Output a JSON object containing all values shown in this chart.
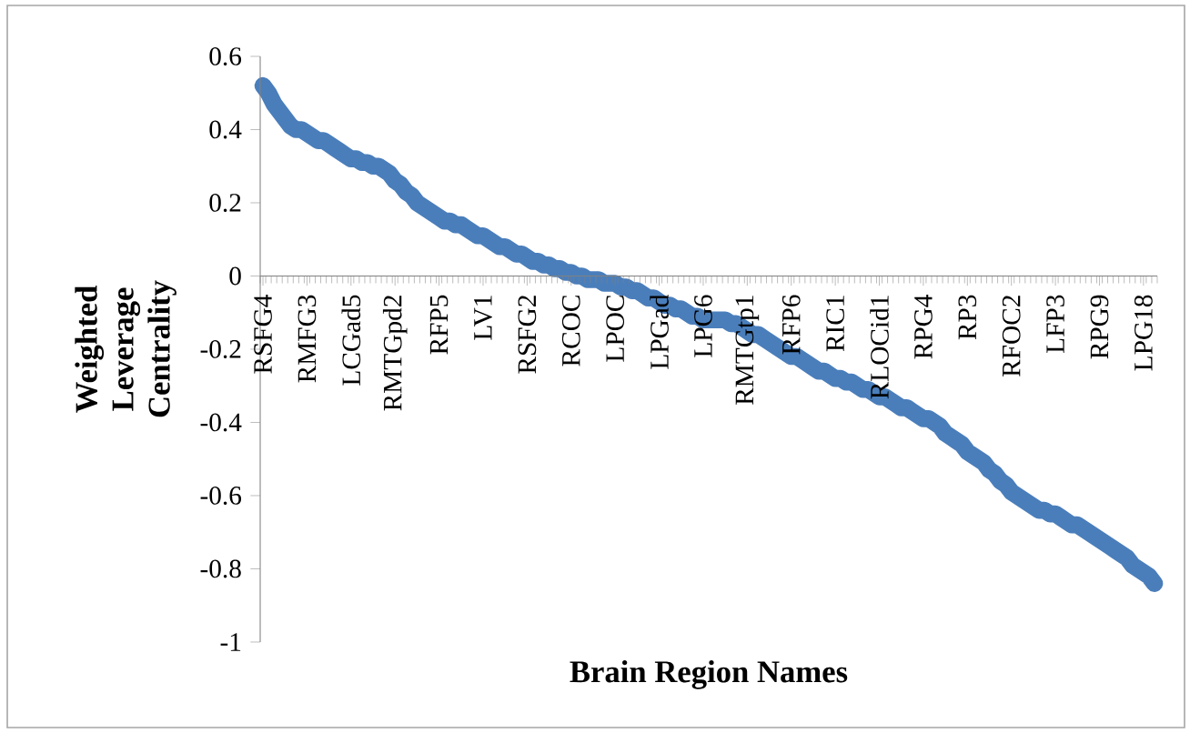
{
  "chart_data": {
    "type": "line",
    "xlabel": "Brain Region Names",
    "ylabel": "Weighted Leverage Centrality",
    "categories": [
      "RSFG4",
      null,
      null,
      null,
      null,
      null,
      null,
      null,
      "RMFG3",
      null,
      null,
      null,
      null,
      null,
      null,
      null,
      "LCGad5",
      null,
      null,
      null,
      null,
      null,
      null,
      null,
      "RMTGpd2",
      null,
      null,
      null,
      null,
      null,
      null,
      null,
      "RFP5",
      null,
      null,
      null,
      null,
      null,
      null,
      null,
      "LV1",
      null,
      null,
      null,
      null,
      null,
      null,
      null,
      "RSFG2",
      null,
      null,
      null,
      null,
      null,
      null,
      null,
      "RCOC",
      null,
      null,
      null,
      null,
      null,
      null,
      null,
      "LPOC",
      null,
      null,
      null,
      null,
      null,
      null,
      null,
      "LPGad",
      null,
      null,
      null,
      null,
      null,
      null,
      null,
      "LPG6",
      null,
      null,
      null,
      null,
      null,
      null,
      null,
      "RMTGtp1",
      null,
      null,
      null,
      null,
      null,
      null,
      null,
      "RFP6",
      null,
      null,
      null,
      null,
      null,
      null,
      null,
      "RIC1",
      null,
      null,
      null,
      null,
      null,
      null,
      null,
      "RLOCid1",
      null,
      null,
      null,
      null,
      null,
      null,
      null,
      "RPG4",
      null,
      null,
      null,
      null,
      null,
      null,
      null,
      "RP3",
      null,
      null,
      null,
      null,
      null,
      null,
      null,
      "RFOC2",
      null,
      null,
      null,
      null,
      null,
      null,
      null,
      "LFP3",
      null,
      null,
      null,
      null,
      null,
      null,
      null,
      "RPG9",
      null,
      null,
      null,
      null,
      null,
      null,
      null,
      "LPG18",
      null,
      null
    ],
    "values": [
      0.52,
      0.5,
      0.47,
      0.45,
      0.43,
      0.41,
      0.4,
      0.4,
      0.39,
      0.38,
      0.37,
      0.37,
      0.36,
      0.35,
      0.34,
      0.33,
      0.32,
      0.32,
      0.31,
      0.31,
      0.3,
      0.3,
      0.29,
      0.28,
      0.26,
      0.25,
      0.23,
      0.22,
      0.2,
      0.19,
      0.18,
      0.17,
      0.16,
      0.15,
      0.15,
      0.14,
      0.14,
      0.13,
      0.12,
      0.11,
      0.11,
      0.1,
      0.09,
      0.08,
      0.08,
      0.07,
      0.06,
      0.06,
      0.05,
      0.04,
      0.04,
      0.03,
      0.03,
      0.02,
      0.02,
      0.01,
      0.01,
      0.0,
      0.0,
      -0.01,
      -0.01,
      -0.01,
      -0.02,
      -0.02,
      -0.02,
      -0.03,
      -0.03,
      -0.04,
      -0.04,
      -0.05,
      -0.06,
      -0.06,
      -0.07,
      -0.08,
      -0.08,
      -0.09,
      -0.09,
      -0.1,
      -0.11,
      -0.11,
      -0.12,
      -0.12,
      -0.12,
      -0.12,
      -0.12,
      -0.13,
      -0.13,
      -0.14,
      -0.15,
      -0.16,
      -0.16,
      -0.17,
      -0.18,
      -0.19,
      -0.2,
      -0.21,
      -0.22,
      -0.22,
      -0.23,
      -0.24,
      -0.25,
      -0.26,
      -0.26,
      -0.27,
      -0.28,
      -0.28,
      -0.29,
      -0.29,
      -0.3,
      -0.31,
      -0.31,
      -0.32,
      -0.33,
      -0.33,
      -0.34,
      -0.35,
      -0.36,
      -0.36,
      -0.37,
      -0.38,
      -0.39,
      -0.39,
      -0.4,
      -0.41,
      -0.43,
      -0.44,
      -0.45,
      -0.46,
      -0.48,
      -0.49,
      -0.5,
      -0.51,
      -0.53,
      -0.54,
      -0.56,
      -0.57,
      -0.59,
      -0.6,
      -0.61,
      -0.62,
      -0.63,
      -0.64,
      -0.64,
      -0.65,
      -0.65,
      -0.66,
      -0.67,
      -0.68,
      -0.68,
      -0.69,
      -0.7,
      -0.71,
      -0.72,
      -0.73,
      -0.74,
      -0.75,
      -0.76,
      -0.77,
      -0.79,
      -0.8,
      -0.81,
      -0.82,
      -0.84
    ],
    "color": "#4a7ebb",
    "ylim": [
      -1,
      0.6
    ],
    "yticks": [
      -1,
      -0.8,
      -0.6,
      -0.4,
      -0.2,
      0,
      0.2,
      0.4,
      0.6
    ],
    "line_style": "solid"
  }
}
